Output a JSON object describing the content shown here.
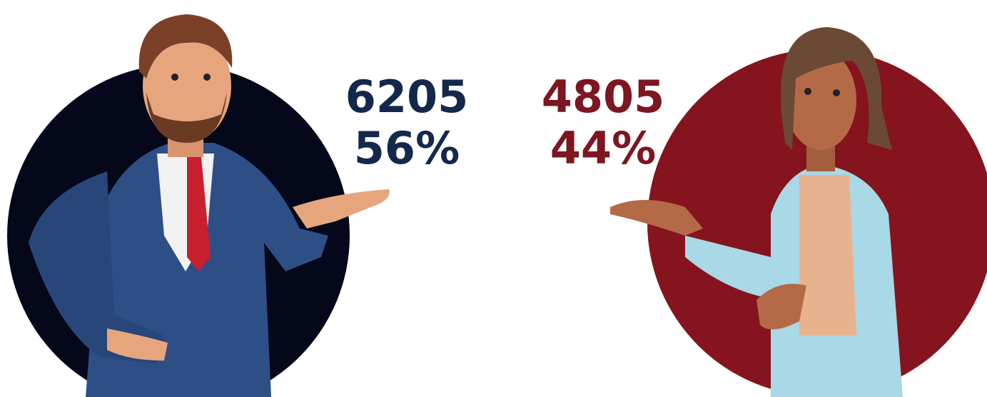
{
  "male": {
    "count": "6205",
    "percent": "56%"
  },
  "female": {
    "count": "4805",
    "percent": "44%"
  }
}
